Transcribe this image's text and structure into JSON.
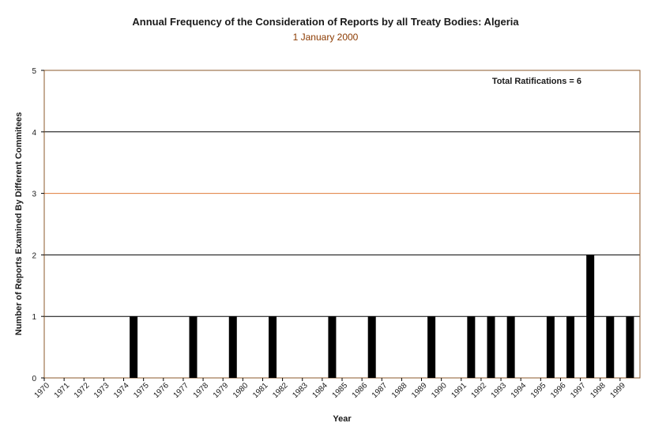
{
  "chart_data": {
    "type": "bar",
    "title": "Annual Frequency of the Consideration of Reports by all Treaty Bodies: Algeria",
    "subtitle": "1 January 2000",
    "xlabel": "Year",
    "ylabel": "Number of Reports Examined By Different Commitees",
    "annotation": "Total Ratifications = 6",
    "ylim": [
      0,
      5
    ],
    "yticks": [
      0,
      1,
      2,
      3,
      4,
      5
    ],
    "grid": true,
    "categories": [
      "1970",
      "1971",
      "1972",
      "1973",
      "1974",
      "1975",
      "1976",
      "1977",
      "1978",
      "1979",
      "1980",
      "1981",
      "1982",
      "1983",
      "1984",
      "1985",
      "1986",
      "1987",
      "1988",
      "1989",
      "1990",
      "1991",
      "1992",
      "1993",
      "1994",
      "1995",
      "1996",
      "1997",
      "1998",
      "1999"
    ],
    "values": [
      0,
      0,
      0,
      0,
      1,
      0,
      0,
      1,
      0,
      1,
      0,
      1,
      0,
      0,
      1,
      0,
      1,
      0,
      0,
      1,
      0,
      1,
      1,
      1,
      0,
      1,
      1,
      2,
      1,
      1
    ],
    "colors": {
      "bar": "#000000",
      "frame": "#8b5a2b",
      "gridline": "#000000",
      "highlight_gridline": "#e07b39",
      "subtitle": "#8b3a00"
    }
  }
}
